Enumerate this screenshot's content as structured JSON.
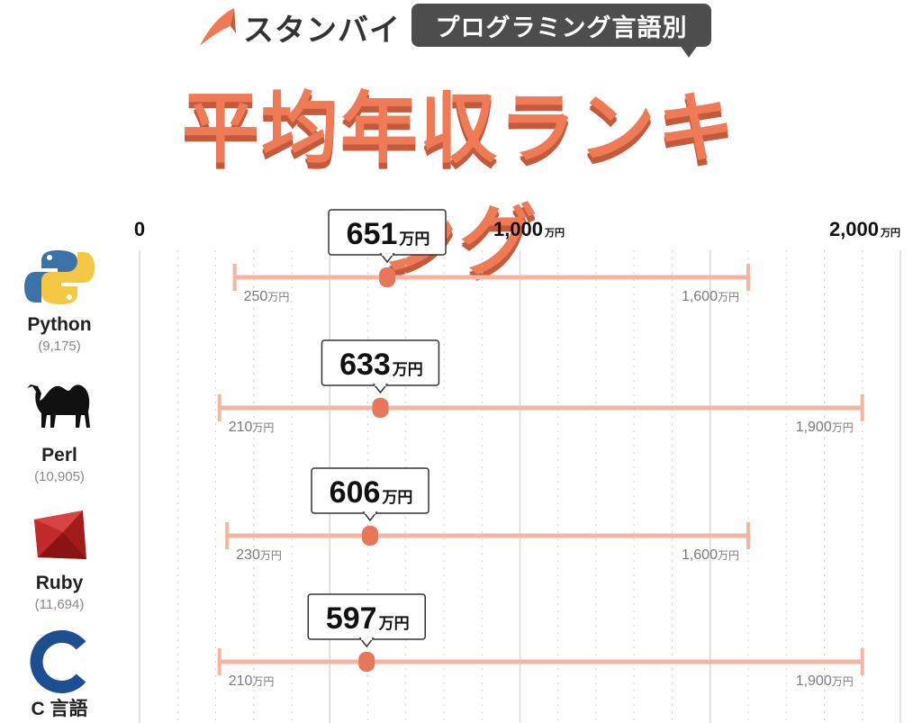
{
  "header": {
    "brand": "スタンバイ",
    "badge": "プログラミング言語別",
    "title": "平均年収ランキング"
  },
  "colors": {
    "accent": "#ee7a56",
    "range_bar": "#f5b5a0",
    "dot": "#e8775a",
    "badge_bg": "#4d4d4d"
  },
  "chart_data": {
    "type": "range",
    "title": "平均年収ランキング",
    "unit": "万円",
    "xlim": [
      0,
      2000
    ],
    "x_ticks": [
      {
        "value": 0,
        "label": "0",
        "unit": ""
      },
      {
        "value": 1000,
        "label": "1,000",
        "unit": "万円"
      },
      {
        "value": 2000,
        "label": "2,000",
        "unit": "万円"
      }
    ],
    "grid": true,
    "series": [
      {
        "name": "Python",
        "count": "(9,175)",
        "icon": "python-logo-icon",
        "min": 250,
        "max": 1600,
        "avg": 651,
        "min_label": "250",
        "max_label": "1,600",
        "avg_label": "651"
      },
      {
        "name": "Perl",
        "count": "(10,905)",
        "icon": "camel-icon",
        "min": 210,
        "max": 1900,
        "avg": 633,
        "min_label": "210",
        "max_label": "1,900",
        "avg_label": "633"
      },
      {
        "name": "Ruby",
        "count": "(11,694)",
        "icon": "ruby-gem-icon",
        "min": 230,
        "max": 1600,
        "avg": 606,
        "min_label": "230",
        "max_label": "1,600",
        "avg_label": "606"
      },
      {
        "name": "C 言語",
        "count": "",
        "icon": "c-letter-icon",
        "min": 210,
        "max": 1900,
        "avg": 597,
        "min_label": "210",
        "max_label": "1,900",
        "avg_label": "597"
      }
    ]
  }
}
